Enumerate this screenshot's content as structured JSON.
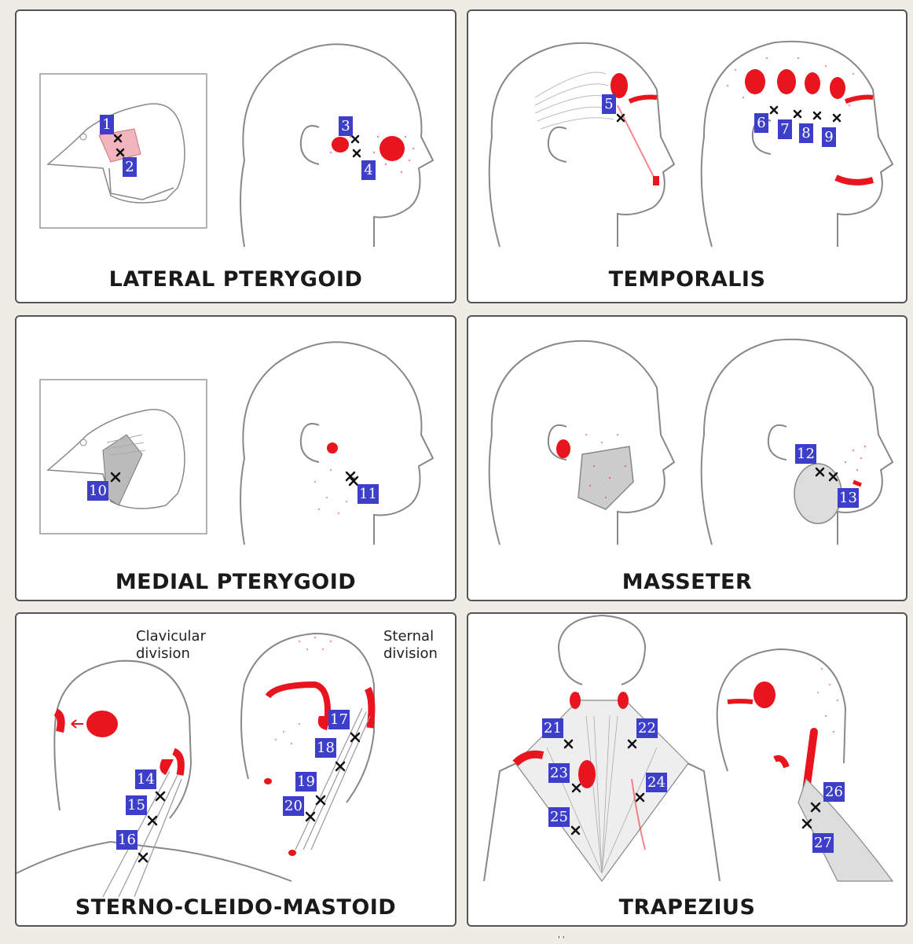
{
  "panels": [
    {
      "title": "LATERAL PTERYGOID",
      "points": [
        "1",
        "2",
        "3",
        "4"
      ]
    },
    {
      "title": "TEMPORALIS",
      "points": [
        "5",
        "6",
        "7",
        "8",
        "9"
      ]
    },
    {
      "title": "MEDIAL PTERYGOID",
      "points": [
        "10",
        "11"
      ]
    },
    {
      "title": "MASSETER",
      "points": [
        "12",
        "13"
      ]
    },
    {
      "title": "STERNO-CLEIDO-MASTOID",
      "points": [
        "14",
        "15",
        "16",
        "17",
        "18",
        "19",
        "20"
      ],
      "notes": {
        "clavicular_line1": "Clavicular",
        "clavicular_line2": "division",
        "sternal_line1": "Sternal",
        "sternal_line2": "division"
      }
    },
    {
      "title": "TRAPEZIUS",
      "points": [
        "21",
        "22",
        "23",
        "24",
        "25",
        "26",
        "27"
      ]
    }
  ],
  "colors": {
    "referral_red": "#e8141e",
    "badge_blue": "#3d3fc9",
    "outline": "#555555",
    "marker": "#111111"
  },
  "footer": "'  '"
}
